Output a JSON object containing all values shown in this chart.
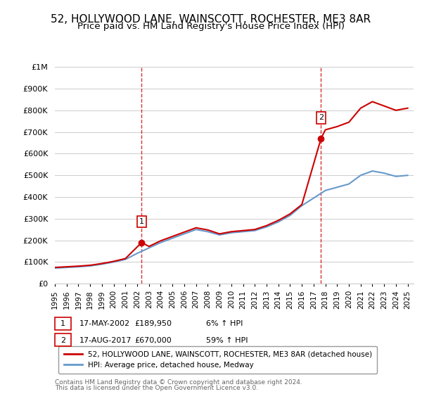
{
  "title": "52, HOLLYWOOD LANE, WAINSCOTT, ROCHESTER, ME3 8AR",
  "subtitle": "Price paid vs. HM Land Registry's House Price Index (HPI)",
  "ylabel_ticks": [
    "£0",
    "£100K",
    "£200K",
    "£300K",
    "£400K",
    "£500K",
    "£600K",
    "£700K",
    "£800K",
    "£900K",
    "£1M"
  ],
  "ytick_values": [
    0,
    100000,
    200000,
    300000,
    400000,
    500000,
    600000,
    700000,
    800000,
    900000,
    1000000
  ],
  "ylim": [
    0,
    1000000
  ],
  "xlim_min": 1995,
  "xlim_max": 2025.5,
  "xticks": [
    1995,
    1996,
    1997,
    1998,
    1999,
    2000,
    2001,
    2002,
    2003,
    2004,
    2005,
    2006,
    2007,
    2008,
    2009,
    2010,
    2011,
    2012,
    2013,
    2014,
    2015,
    2016,
    2017,
    2018,
    2019,
    2020,
    2021,
    2022,
    2023,
    2024,
    2025
  ],
  "sale1_x": 2002.38,
  "sale1_y": 189950,
  "sale1_label": "1",
  "sale1_date": "17-MAY-2002",
  "sale1_price": "£189,950",
  "sale1_hpi": "6% ↑ HPI",
  "sale2_x": 2017.63,
  "sale2_y": 670000,
  "sale2_label": "2",
  "sale2_date": "17-AUG-2017",
  "sale2_price": "£670,000",
  "sale2_hpi": "59% ↑ HPI",
  "red_line_color": "#cc0000",
  "blue_line_color": "#6699cc",
  "vline_color": "#cc0000",
  "dot_color": "#cc0000",
  "legend_label_red": "52, HOLLYWOOD LANE, WAINSCOTT, ROCHESTER, ME3 8AR (detached house)",
  "legend_label_blue": "HPI: Average price, detached house, Medway",
  "footer1": "Contains HM Land Registry data © Crown copyright and database right 2024.",
  "footer2": "This data is licensed under the Open Government Licence v3.0.",
  "background_color": "#ffffff",
  "plot_bg_color": "#ffffff",
  "grid_color": "#cccccc",
  "title_fontsize": 11,
  "subtitle_fontsize": 9.5,
  "hpi_years": [
    1995,
    1996,
    1997,
    1998,
    1999,
    2000,
    2001,
    2002,
    2003,
    2004,
    2005,
    2006,
    2007,
    2008,
    2009,
    2010,
    2011,
    2012,
    2013,
    2014,
    2015,
    2016,
    2017,
    2018,
    2019,
    2020,
    2021,
    2022,
    2023,
    2024,
    2025
  ],
  "hpi_values": [
    72000,
    75000,
    78000,
    82000,
    90000,
    100000,
    112000,
    140000,
    165000,
    190000,
    210000,
    230000,
    250000,
    240000,
    225000,
    235000,
    240000,
    245000,
    262000,
    285000,
    315000,
    360000,
    395000,
    430000,
    445000,
    460000,
    500000,
    520000,
    510000,
    495000,
    500000
  ],
  "red_years": [
    1995,
    1996,
    1997,
    1998,
    1999,
    2000,
    2001,
    2002.38,
    2003,
    2004,
    2005,
    2006,
    2007,
    2008,
    2009,
    2010,
    2011,
    2012,
    2013,
    2014,
    2015,
    2016,
    2017.63,
    2018,
    2019,
    2020,
    2021,
    2022,
    2023,
    2024,
    2025
  ],
  "red_values": [
    75000,
    78000,
    81000,
    85000,
    93000,
    103000,
    116000,
    189950,
    172000,
    198000,
    218000,
    238000,
    258000,
    248000,
    230000,
    240000,
    245000,
    250000,
    268000,
    292000,
    322000,
    365000,
    670000,
    710000,
    725000,
    745000,
    810000,
    840000,
    820000,
    800000,
    810000
  ]
}
